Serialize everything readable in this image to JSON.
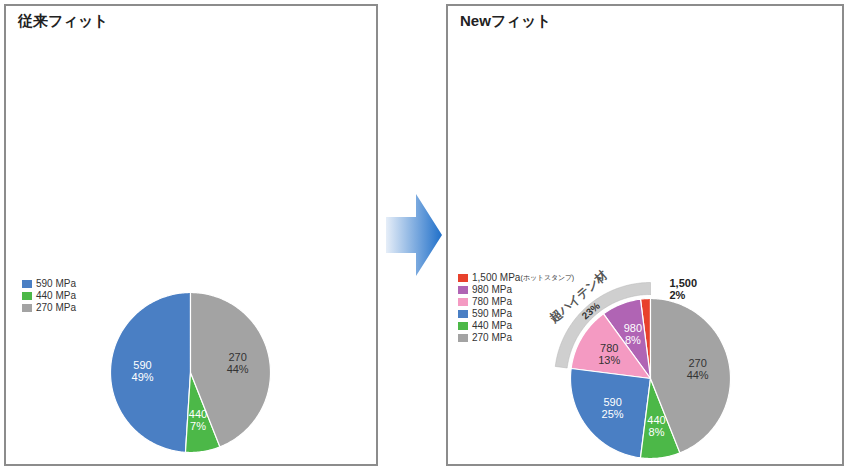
{
  "chart_data": [
    {
      "type": "pie",
      "title": "従来フィット",
      "categories": [
        "590",
        "440",
        "270"
      ],
      "legend_labels": [
        "590 MPa",
        "440 MPa",
        "270 MPa"
      ],
      "values": [
        49,
        7,
        44
      ],
      "value_labels": [
        "49%",
        "7%",
        "44%"
      ],
      "colors": [
        "#4a7fc4",
        "#4cb848",
        "#a3a3a3"
      ],
      "data_labels": true
    },
    {
      "type": "pie",
      "title": "Newフィット",
      "categories": [
        "1,500",
        "980",
        "780",
        "590",
        "440",
        "270"
      ],
      "legend_labels": [
        "1,500 MPa(ホットスタンプ)",
        "980 MPa",
        "780 MPa",
        "590 MPa",
        "440 MPa",
        "270 MPa"
      ],
      "values": [
        2,
        8,
        13,
        25,
        8,
        44
      ],
      "value_labels": [
        "2%",
        "8%",
        "13%",
        "25%",
        "8%",
        "44%"
      ],
      "colors": [
        "#e8412c",
        "#b064b4",
        "#f49ac2",
        "#4a7fc4",
        "#4cb848",
        "#a3a3a3"
      ],
      "data_labels": true,
      "annotation": {
        "text": "超ハイテン材",
        "value": 23,
        "label": "23%",
        "categories": [
          "1,500",
          "980",
          "780"
        ]
      }
    }
  ]
}
